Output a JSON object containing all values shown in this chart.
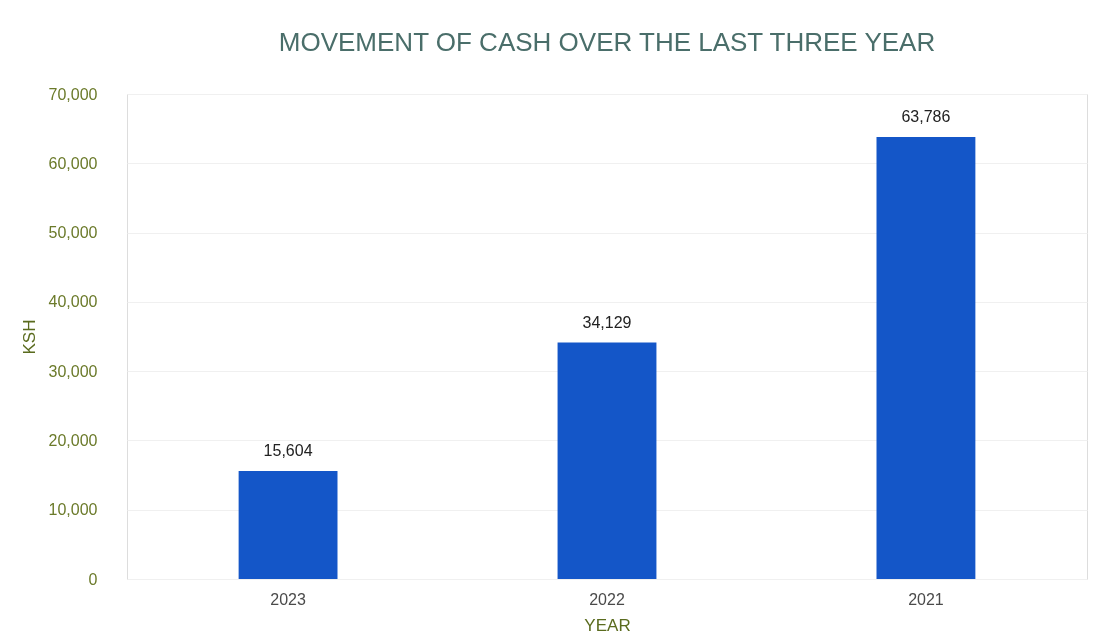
{
  "chart_data": {
    "type": "bar",
    "title": "MOVEMENT OF CASH OVER THE LAST THREE YEAR",
    "xlabel": "YEAR",
    "ylabel": "KSH",
    "categories": [
      "2023",
      "2022",
      "2021"
    ],
    "series": [
      {
        "color": "#1456c8",
        "values": [
          15604,
          34129,
          63786
        ]
      }
    ],
    "ylim": [
      0,
      70000
    ],
    "yticks": [
      {
        "value": 0,
        "label": "0"
      },
      {
        "value": 10000,
        "label": "10,000"
      },
      {
        "value": 20000,
        "label": "20,000"
      },
      {
        "value": 30000,
        "label": "30,000"
      },
      {
        "value": 40000,
        "label": "40,000"
      },
      {
        "value": 50000,
        "label": "50,000"
      },
      {
        "value": 60000,
        "label": "60,000"
      },
      {
        "value": 70000,
        "label": "70,000"
      }
    ],
    "value_labels": [
      "15,604",
      "34,129",
      "63,786"
    ],
    "grid": "y"
  }
}
